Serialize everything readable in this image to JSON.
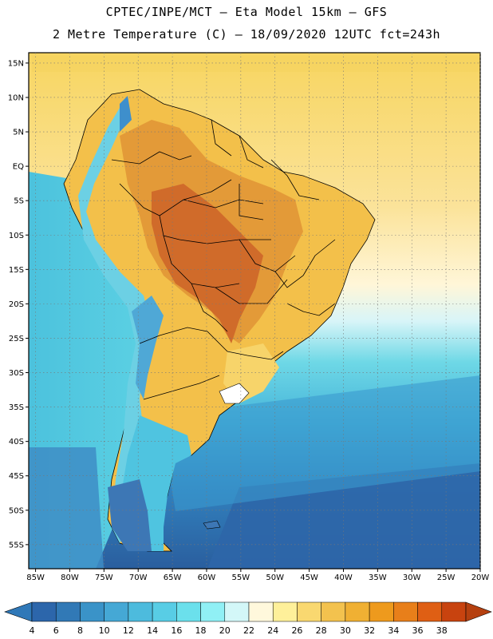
{
  "header": {
    "line1": "CPTEC/INPE/MCT  –   Eta Model 15km  –  GFS",
    "line2": "2 Metre Temperature (C)  –  18/09/2020 12UTC fct=243h"
  },
  "map": {
    "lat_labels": [
      {
        "text": "15N",
        "lat": 15
      },
      {
        "text": "10N",
        "lat": 10
      },
      {
        "text": "5N",
        "lat": 5
      },
      {
        "text": "EQ",
        "lat": 0
      },
      {
        "text": "5S",
        "lat": -5
      },
      {
        "text": "10S",
        "lat": -10
      },
      {
        "text": "15S",
        "lat": -15
      },
      {
        "text": "20S",
        "lat": -20
      },
      {
        "text": "25S",
        "lat": -25
      },
      {
        "text": "30S",
        "lat": -30
      },
      {
        "text": "35S",
        "lat": -35
      },
      {
        "text": "40S",
        "lat": -40
      },
      {
        "text": "45S",
        "lat": -45
      },
      {
        "text": "50S",
        "lat": -50
      },
      {
        "text": "55S",
        "lat": -55
      }
    ],
    "lon_labels": [
      {
        "text": "85W",
        "lon": -85
      },
      {
        "text": "80W",
        "lon": -80
      },
      {
        "text": "75W",
        "lon": -75
      },
      {
        "text": "70W",
        "lon": -70
      },
      {
        "text": "65W",
        "lon": -65
      },
      {
        "text": "60W",
        "lon": -60
      },
      {
        "text": "55W",
        "lon": -55
      },
      {
        "text": "50W",
        "lon": -50
      },
      {
        "text": "45W",
        "lon": -45
      },
      {
        "text": "40W",
        "lon": -40
      },
      {
        "text": "35W",
        "lon": -35
      },
      {
        "text": "30W",
        "lon": -30
      },
      {
        "text": "25W",
        "lon": -25
      },
      {
        "text": "20W",
        "lon": -20
      }
    ],
    "lon_range": [
      -86,
      -20
    ],
    "lat_range": [
      -58.5,
      16.5
    ],
    "colors": {
      "ocean_north": "#F7D560",
      "ocean_north_light": "#FBE9A0",
      "ocean_pale": "#FFF8DC",
      "ocean_cyan_light": "#BEEFF5",
      "ocean_cyan": "#5FD3E3",
      "ocean_mid": "#3EA7D1",
      "ocean_deep": "#2D71B0",
      "ocean_deepest": "#2A5E9E",
      "land_yellow": "#F5C54A",
      "land_orange": "#E8A23A",
      "land_hot": "#D8782D",
      "land_hotter": "#CC5C26",
      "land_cool": "#8FE3EE",
      "andes_blue": "#3E8FCC",
      "andes_light": "#BFE8F0",
      "patagonia": "#4FC4E0",
      "tierra": "#3D77B5"
    }
  },
  "colorbar": {
    "labels": [
      "4",
      "6",
      "8",
      "10",
      "12",
      "14",
      "16",
      "18",
      "20",
      "22",
      "24",
      "26",
      "28",
      "30",
      "32",
      "34",
      "36",
      "38"
    ],
    "colors": [
      "#2C66AB",
      "#3179B6",
      "#3A93C8",
      "#45A8D5",
      "#4DBBDD",
      "#58CDE5",
      "#6BE0EC",
      "#90F0F5",
      "#D3F7F8",
      "#FFF8DC",
      "#FEF09A",
      "#F9D870",
      "#F3C24E",
      "#F0B033",
      "#EE9A1D",
      "#E87F1A",
      "#DF5F14",
      "#C8430F"
    ],
    "low_color": "#2F78B8",
    "high_color": "#B5400F"
  }
}
